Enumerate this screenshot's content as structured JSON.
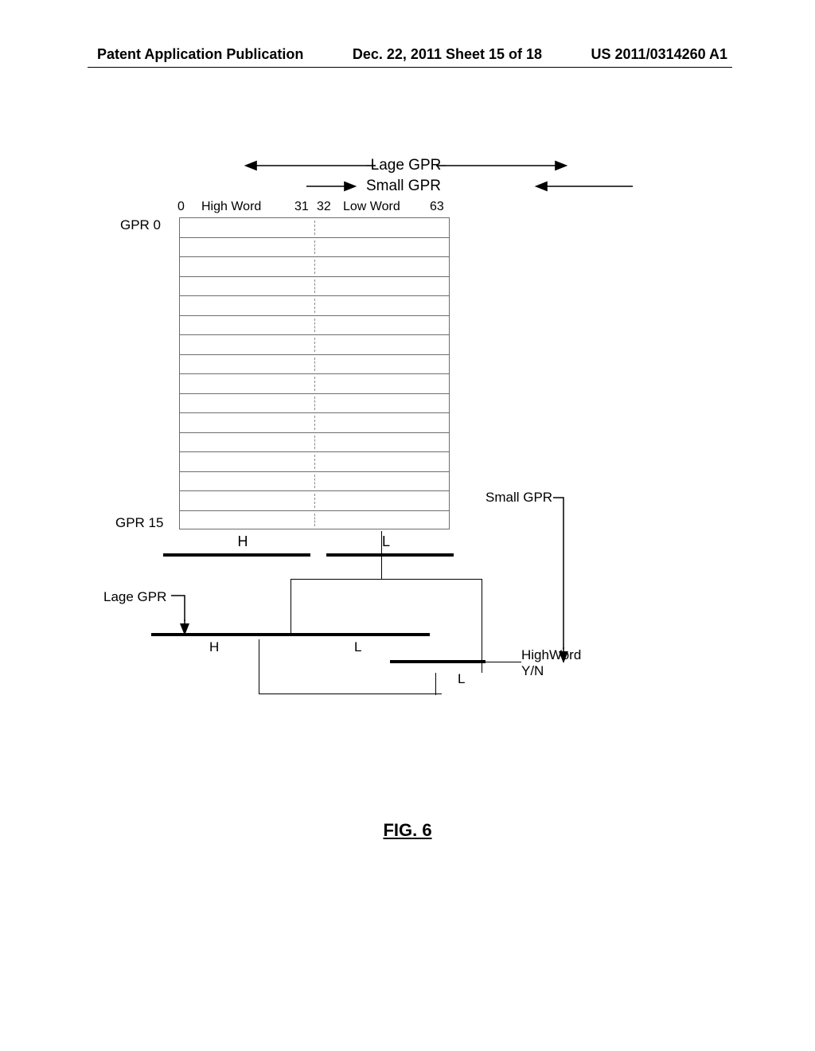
{
  "header": {
    "left": "Patent Application Publication",
    "center": "Dec. 22, 2011  Sheet 15 of 18",
    "right": "US 2011/0314260 A1"
  },
  "arrows": {
    "lage_gpr": "Lage GPR",
    "small_gpr": "Small GPR"
  },
  "bits": {
    "b0": "0",
    "high_word": "High Word",
    "b31": "31",
    "b32": "32",
    "low_word": "Low Word",
    "b63": "63"
  },
  "labels": {
    "gpr0": "GPR 0",
    "gpr15": "GPR 15",
    "lage_gpr_side": "Lage GPR",
    "small_gpr_side": "Small GPR",
    "high_word_yn_l1": "HighWord",
    "high_word_yn_l2": "Y/N"
  },
  "letters": {
    "H": "H",
    "L": "L"
  },
  "rows": 16,
  "figure": "FIG. 6",
  "colors": {
    "grid": "#6d6d6d",
    "black": "#000000"
  }
}
